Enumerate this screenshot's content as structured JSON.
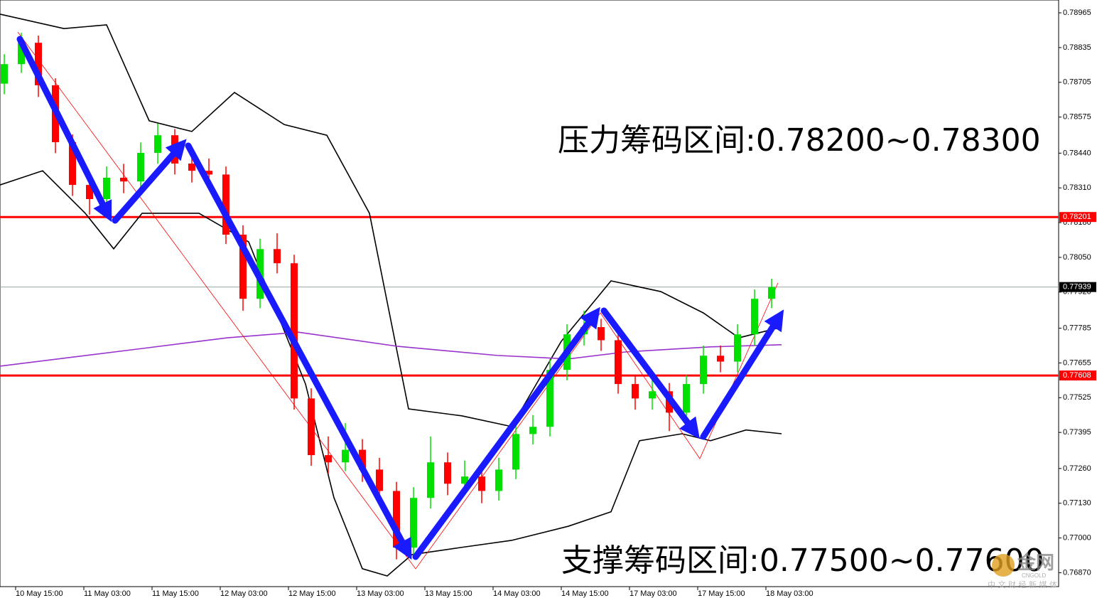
{
  "chart_data": {
    "type": "candlestick",
    "annotations": [
      "压力筹码区间:0.78200~0.78300",
      "支撑筹码区间:0.77500~0.77600"
    ],
    "watermark": {
      "logo": "金网",
      "brand": "CNGOLD",
      "slogan": "中 文 财 经 新 媒 体"
    },
    "xlim": [
      -2.75,
      183.5
    ],
    "ylim": [
      0.76818,
      0.79013
    ],
    "xticks": [
      {
        "value": 0,
        "label": "10 May 15:00"
      },
      {
        "value": 12,
        "label": "11 May 03:00"
      },
      {
        "value": 24,
        "label": "11 May 15:00"
      },
      {
        "value": 36,
        "label": "12 May 03:00"
      },
      {
        "value": 48,
        "label": "12 May 15:00"
      },
      {
        "value": 60,
        "label": "13 May 03:00"
      },
      {
        "value": 72,
        "label": "13 May 15:00"
      },
      {
        "value": 84,
        "label": "14 May 03:00"
      },
      {
        "value": 96,
        "label": "14 May 15:00"
      },
      {
        "value": 108,
        "label": "17 May 03:00"
      },
      {
        "value": 120,
        "label": "17 May 15:00"
      },
      {
        "value": 132,
        "label": "18 May 03:00"
      }
    ],
    "yticks": [
      0.78965,
      0.78835,
      0.78705,
      0.78575,
      {
        "value": 0.7844,
        "label": "0.78440"
      },
      {
        "value": 0.7831,
        "label": "0.78310"
      },
      {
        "value": 0.7818,
        "label": "0.78180"
      },
      {
        "value": 0.7805,
        "label": "0.78050"
      },
      {
        "value": 0.7792,
        "label": "0.77920"
      },
      0.77785,
      0.77655,
      0.77525,
      0.77395,
      {
        "value": 0.7726,
        "label": "0.77260"
      },
      {
        "value": 0.7713,
        "label": "0.77130"
      },
      {
        "value": 0.77,
        "label": "0.77000"
      },
      {
        "value": 0.7687,
        "label": "0.76870"
      }
    ],
    "levels": [
      {
        "value": 0.78201,
        "color": "#ff0000"
      },
      {
        "value": 0.77608,
        "color": "#ff0000"
      },
      {
        "value": 0.77939,
        "color": "#000000"
      }
    ],
    "up_color": "#00e000",
    "down_color": "#ff0000",
    "x": [
      -2,
      1,
      4,
      7,
      10,
      13,
      16,
      19,
      22,
      25,
      28,
      31,
      34,
      37,
      40,
      43,
      46,
      49,
      52,
      55,
      58,
      61,
      64,
      67,
      70,
      73,
      76,
      79,
      82,
      85,
      88,
      91,
      94,
      97,
      100,
      103,
      106,
      109,
      112,
      115,
      118,
      121,
      124,
      127,
      130,
      133
    ],
    "open": [
      0.787,
      0.78773,
      0.78853,
      0.78694,
      0.78481,
      0.78321,
      0.78268,
      0.78348,
      0.78334,
      0.78441,
      0.78507,
      0.78401,
      0.78374,
      0.7836,
      0.78135,
      0.77895,
      0.78081,
      0.78028,
      0.77522,
      0.7731,
      0.77283,
      0.7733,
      0.77256,
      0.77176,
      0.76964,
      0.7715,
      0.77283,
      0.77203,
      0.7723,
      0.77176,
      0.77256,
      0.77389,
      0.77416,
      0.77629,
      0.77762,
      0.77789,
      0.7774,
      0.77576,
      0.77522,
      0.77549,
      0.77469,
      0.77576,
      0.77682,
      0.7766,
      0.77762,
      0.77895
    ],
    "high": [
      0.7881,
      0.7889,
      0.7888,
      0.7872,
      0.7851,
      0.7836,
      0.7839,
      0.784,
      0.7848,
      0.7855,
      0.7853,
      0.7843,
      0.7842,
      0.7839,
      0.7817,
      0.7812,
      0.7814,
      0.7806,
      0.7756,
      0.7738,
      0.7743,
      0.7737,
      0.773,
      0.7721,
      0.7719,
      0.7738,
      0.7732,
      0.7729,
      0.7727,
      0.773,
      0.7743,
      0.7746,
      0.7767,
      0.778,
      0.7785,
      0.7782,
      0.7777,
      0.7761,
      0.776,
      0.7758,
      0.7761,
      0.7772,
      0.7772,
      0.778,
      0.7793,
      0.7797
    ],
    "low": [
      0.7866,
      0.7874,
      0.7865,
      0.7844,
      0.7828,
      0.7821,
      0.7823,
      0.7829,
      0.783,
      0.784,
      0.7836,
      0.7833,
      0.7832,
      0.781,
      0.7785,
      0.7786,
      0.7799,
      0.7748,
      0.7727,
      0.7724,
      0.7725,
      0.7721,
      0.7713,
      0.7692,
      0.7693,
      0.7711,
      0.7716,
      0.7716,
      0.7713,
      0.7714,
      0.7722,
      0.7735,
      0.7738,
      0.7759,
      0.7772,
      0.777,
      0.7754,
      0.7748,
      0.7748,
      0.774,
      0.7743,
      0.7754,
      0.7762,
      0.7762,
      0.7772,
      0.7786
    ],
    "close": [
      0.78773,
      0.78853,
      0.78694,
      0.78481,
      0.78321,
      0.78268,
      0.78348,
      0.78334,
      0.78441,
      0.78507,
      0.78401,
      0.78374,
      0.7836,
      0.78135,
      0.77895,
      0.78081,
      0.78028,
      0.77522,
      0.7731,
      0.77283,
      0.7733,
      0.77256,
      0.77176,
      0.76964,
      0.7715,
      0.77283,
      0.77203,
      0.7723,
      0.77176,
      0.77256,
      0.77389,
      0.77416,
      0.77629,
      0.77762,
      0.77789,
      0.7774,
      0.77576,
      0.77522,
      0.77549,
      0.77469,
      0.77576,
      0.77682,
      0.7766,
      0.77762,
      0.77895,
      0.77939
    ],
    "lines": [
      {
        "color": "#000000",
        "x": [
          -2.75,
          8.5,
          16,
          23.5,
          31,
          38.5,
          47.25,
          54.75,
          62.25,
          69.125,
          78.5,
          87.25,
          96,
          104.75,
          113.5,
          121,
          127.25,
          134.75
        ],
        "values": [
          0.7896,
          0.78906,
          0.7892,
          0.78561,
          0.78521,
          0.78667,
          0.78547,
          0.78507,
          0.78215,
          0.77483,
          0.77457,
          0.77417,
          0.77736,
          0.77962,
          0.77922,
          0.77842,
          0.77749,
          0.77789
        ]
      },
      {
        "color": "#000000",
        "x": [
          -2.75,
          4.75,
          12.25,
          17.25,
          22.25,
          32.25,
          41,
          51,
          56,
          61,
          65.375,
          69.75,
          78.5,
          87.25,
          97.25,
          104.75,
          109.75,
          117.25,
          122.25,
          128.5,
          134.75
        ],
        "values": [
          0.78321,
          0.78374,
          0.78215,
          0.78082,
          0.78215,
          0.78215,
          0.78108,
          0.77576,
          0.77151,
          0.76885,
          0.76858,
          0.76938,
          0.76965,
          0.76991,
          0.77044,
          0.77098,
          0.77364,
          0.7739,
          0.77364,
          0.77404,
          0.7739
        ]
      },
      {
        "color": "#9933cc",
        "x": [
          -2.75,
          22.25,
          37.25,
          49.75,
          67.25,
          84.75,
          97.25,
          107.25,
          122.25,
          134.75
        ],
        "values": [
          0.77643,
          0.77709,
          0.77749,
          0.7777,
          0.77717,
          0.77683,
          0.7767,
          0.77696,
          0.77715,
          0.77723
        ]
      }
    ]
  }
}
